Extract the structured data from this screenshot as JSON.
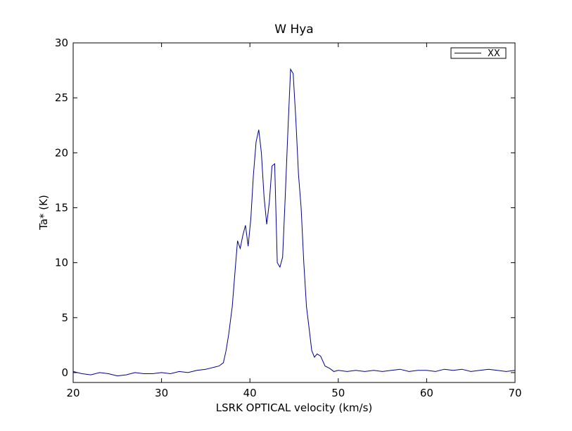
{
  "chart_data": {
    "type": "line",
    "title": "W Hya",
    "xlabel": "LSRK OPTICAL velocity (km/s)",
    "ylabel": "Ta* (K)",
    "xlim": [
      20,
      70
    ],
    "ylim": [
      -0.9,
      30
    ],
    "xticks": [
      20,
      30,
      40,
      50,
      60,
      70
    ],
    "yticks": [
      0,
      5,
      10,
      15,
      20,
      25,
      30
    ],
    "grid": false,
    "legend_position": "top-right",
    "series": [
      {
        "name": "XX",
        "color": "#00008b",
        "x": [
          20,
          21,
          22,
          23,
          24,
          25,
          26,
          27,
          28,
          29,
          30,
          31,
          32,
          33,
          34,
          35,
          35.5,
          36,
          36.5,
          37,
          37.3,
          37.6,
          38,
          38.3,
          38.6,
          38.9,
          39.2,
          39.5,
          39.8,
          40.1,
          40.4,
          40.7,
          41,
          41.3,
          41.6,
          41.9,
          42.2,
          42.5,
          42.8,
          43.1,
          43.4,
          43.7,
          44,
          44.3,
          44.6,
          44.9,
          45.2,
          45.5,
          45.8,
          46.1,
          46.4,
          46.7,
          47,
          47.3,
          47.6,
          48,
          48.5,
          49,
          49.5,
          50,
          51,
          52,
          53,
          54,
          55,
          56,
          57,
          58,
          59,
          60,
          61,
          62,
          63,
          64,
          65,
          66,
          67,
          68,
          69,
          70
        ],
        "values": [
          0.1,
          -0.1,
          -0.2,
          0,
          -0.1,
          -0.3,
          -0.2,
          0,
          -0.1,
          -0.1,
          0,
          -0.1,
          0.1,
          0,
          0.2,
          0.3,
          0.4,
          0.5,
          0.6,
          0.9,
          2.0,
          3.5,
          6.0,
          9.0,
          12.0,
          11.3,
          12.5,
          13.4,
          11.5,
          14.0,
          18.0,
          21.0,
          22.1,
          20.0,
          16.0,
          13.5,
          15.5,
          18.8,
          19.0,
          10.0,
          9.6,
          10.5,
          16.0,
          22.0,
          27.6,
          27.2,
          23.0,
          18.0,
          15.0,
          10.0,
          6.0,
          4.0,
          2.0,
          1.4,
          1.7,
          1.5,
          0.6,
          0.4,
          0.1,
          0.2,
          0.1,
          0.2,
          0.1,
          0.2,
          0.1,
          0.2,
          0.3,
          0.1,
          0.2,
          0.2,
          0.1,
          0.3,
          0.2,
          0.3,
          0.1,
          0.2,
          0.3,
          0.2,
          0.1,
          0.2
        ]
      }
    ]
  }
}
